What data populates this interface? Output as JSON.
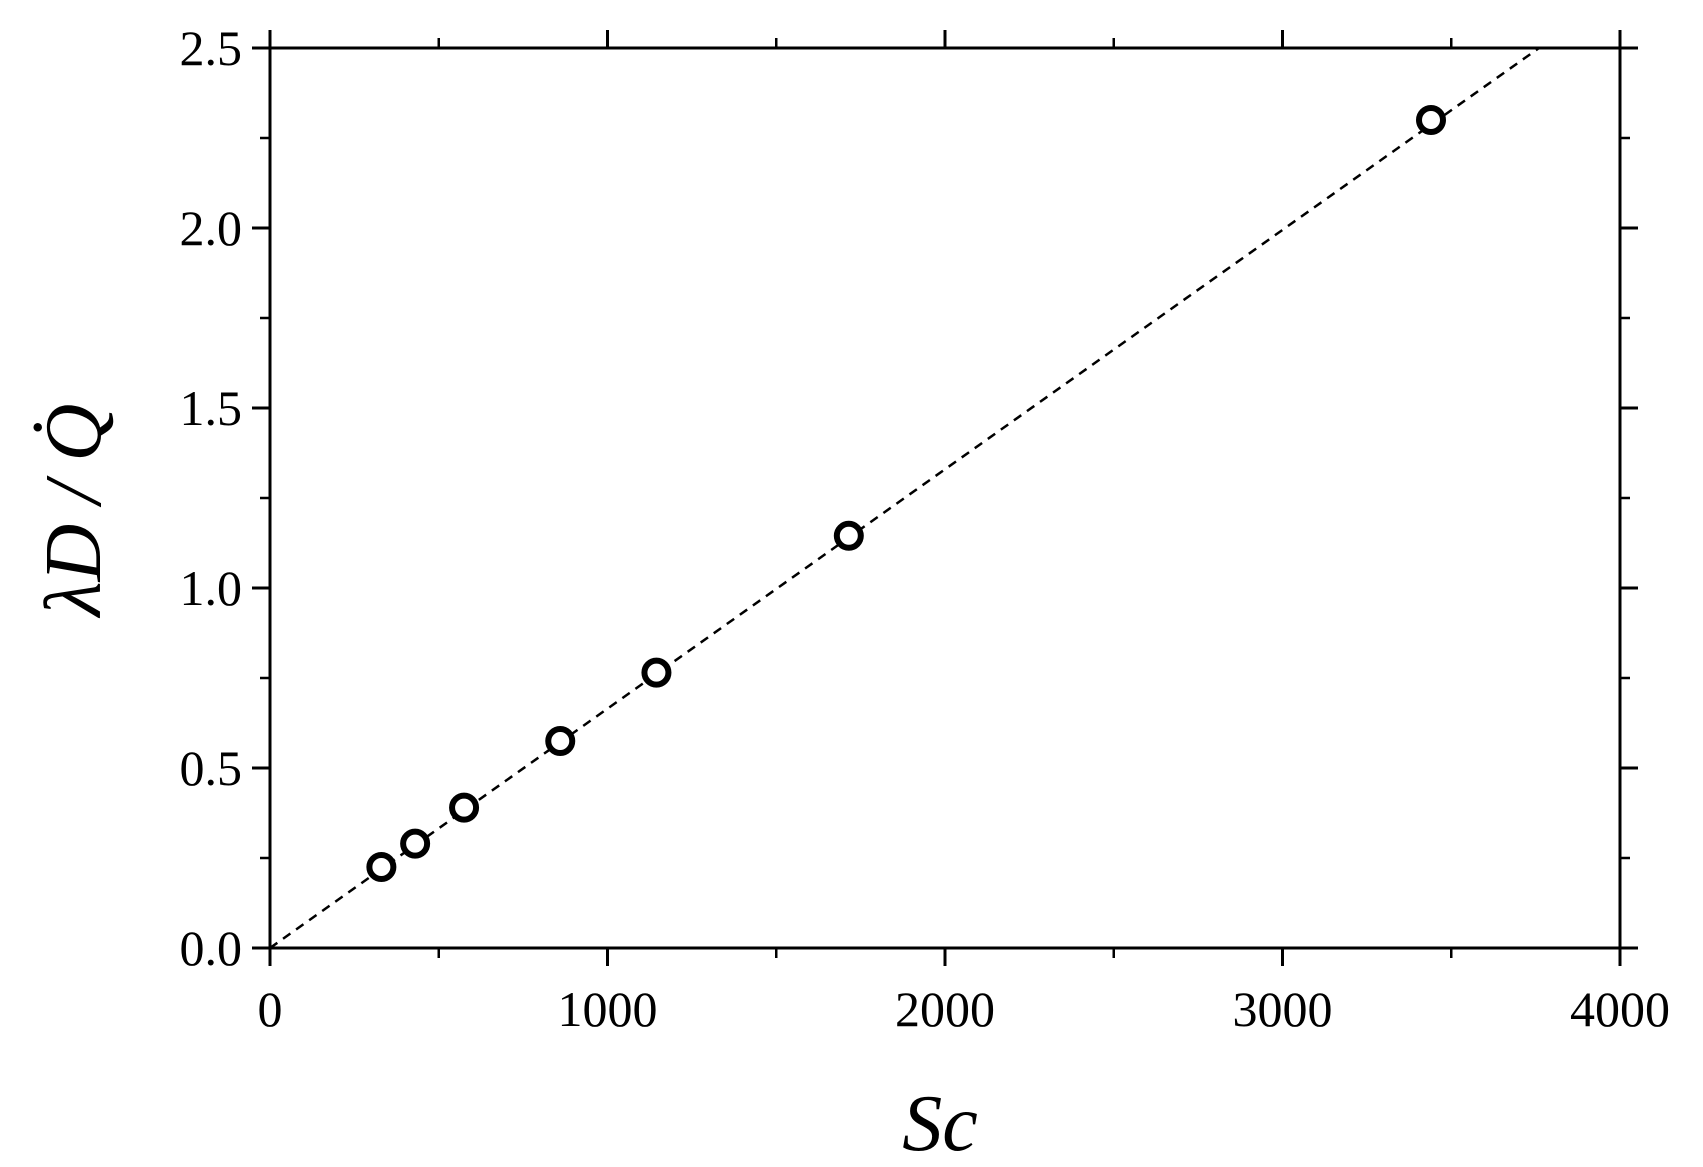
{
  "chart_data": {
    "type": "scatter",
    "xlabel": "Sc",
    "ylabel": "λD / Q̇",
    "xlim": [
      0,
      4000
    ],
    "ylim": [
      0,
      2.5
    ],
    "x_ticks": [
      "0",
      "1000",
      "2000",
      "3000",
      "4000"
    ],
    "y_ticks": [
      "0.0",
      "0.5",
      "1.0",
      "1.5",
      "2.0",
      "2.5"
    ],
    "x_tick_values": [
      0,
      1000,
      2000,
      3000,
      4000
    ],
    "y_tick_values": [
      0,
      0.5,
      1.0,
      1.5,
      2.0,
      2.5
    ],
    "x_minor_step": 500,
    "y_minor_step": 0.25,
    "grid": false,
    "series": [
      {
        "marker": "open-circle",
        "x": [
          330,
          430,
          575,
          860,
          1145,
          1715,
          3440
        ],
        "y": [
          0.225,
          0.29,
          0.39,
          0.575,
          0.765,
          1.145,
          2.3
        ]
      }
    ],
    "fit_line": {
      "style": "dashed",
      "x": [
        0,
        3760
      ],
      "y": [
        0,
        2.5
      ]
    },
    "colors": {
      "axis": "#000000",
      "marker": "#000000",
      "line": "#000000"
    }
  }
}
